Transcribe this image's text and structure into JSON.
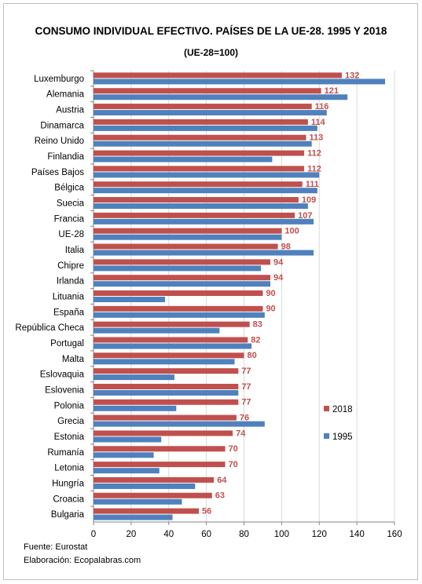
{
  "chart_data": {
    "type": "bar",
    "orientation": "horizontal",
    "title": "CONSUMO INDIVIDUAL EFECTIVO. PAÍSES DE LA UE-28. 1995 Y 2018",
    "subtitle": "(UE-28=100)",
    "categories": [
      "Luxemburgo",
      "Alemania",
      "Austria",
      "Dinamarca",
      "Reino Unido",
      "Finlandia",
      "Países Bajos",
      "Bélgica",
      "Suecia",
      "Francia",
      "UE-28",
      "Italia",
      "Chipre",
      "Irlanda",
      "Lituania",
      "España",
      "República Checa",
      "Portugal",
      "Malta",
      "Eslovaquia",
      "Eslovenia",
      "Polonia",
      "Grecia",
      "Estonia",
      "Rumanía",
      "Letonia",
      "Hungría",
      "Croacia",
      "Bulgaria"
    ],
    "series": [
      {
        "name": "2018",
        "color": "#c0504d",
        "values": [
          132,
          121,
          116,
          114,
          113,
          112,
          112,
          111,
          109,
          107,
          100,
          98,
          94,
          94,
          90,
          90,
          83,
          82,
          80,
          77,
          77,
          77,
          76,
          74,
          70,
          70,
          64,
          63,
          56
        ]
      },
      {
        "name": "1995",
        "color": "#4f81bd",
        "values": [
          155,
          135,
          124,
          119,
          116,
          95,
          120,
          119,
          114,
          117,
          100,
          117,
          89,
          94,
          38,
          91,
          67,
          84,
          75,
          43,
          77,
          44,
          91,
          36,
          32,
          35,
          54,
          47,
          42
        ]
      }
    ],
    "data_labels_series": "2018",
    "xlim": [
      0,
      160
    ],
    "xticks": [
      0,
      20,
      40,
      60,
      80,
      100,
      120,
      140,
      160
    ],
    "grid": true,
    "legend_position": "right"
  },
  "footer": {
    "source": "Fuente: Eurostat",
    "credit": "Elaboración: Ecopalabras.com"
  }
}
